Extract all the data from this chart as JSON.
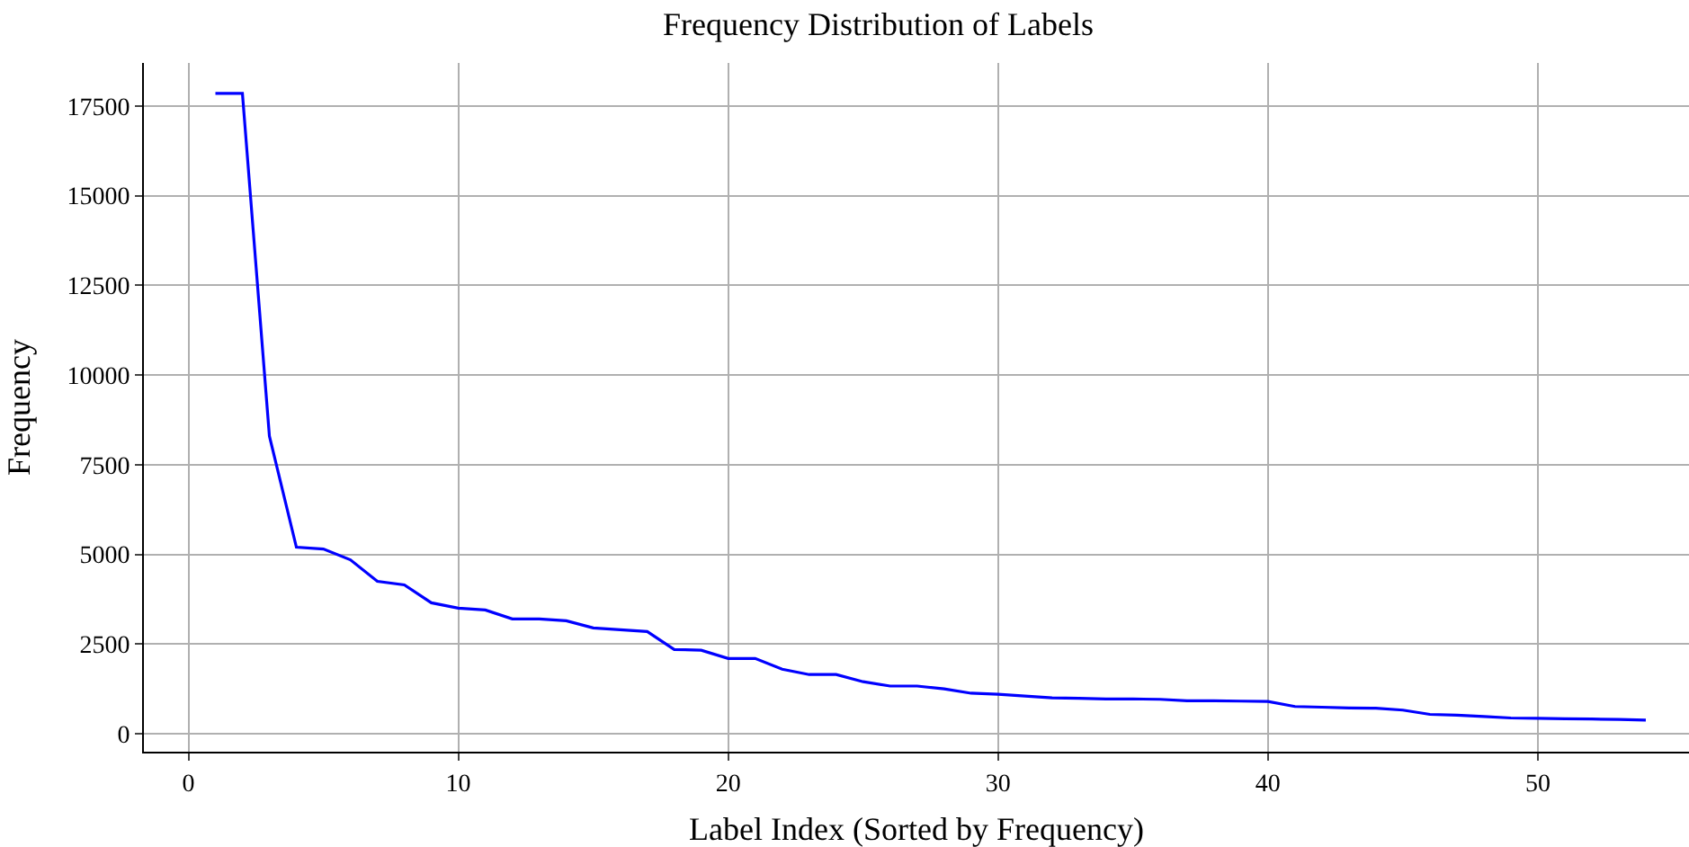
{
  "chart_data": {
    "type": "line",
    "title": "Frequency Distribution of Labels",
    "xlabel": "Label Index (Sorted by Frequency)",
    "ylabel": "Frequency",
    "x": [
      1,
      2,
      3,
      4,
      5,
      6,
      7,
      8,
      9,
      10,
      11,
      12,
      13,
      14,
      15,
      16,
      17,
      18,
      19,
      20,
      21,
      22,
      23,
      24,
      25,
      26,
      27,
      28,
      29,
      30,
      31,
      32,
      33,
      34,
      35,
      36,
      37,
      38,
      39,
      40,
      41,
      42,
      43,
      44,
      45,
      46,
      47,
      48,
      49,
      50,
      51,
      52,
      53,
      54
    ],
    "series": [
      {
        "color": "#0000ff",
        "values": [
          17850,
          17850,
          8300,
          5200,
          5150,
          4850,
          4250,
          4150,
          3650,
          3500,
          3450,
          3200,
          3200,
          3150,
          2950,
          2900,
          2850,
          2350,
          2330,
          2100,
          2100,
          1800,
          1650,
          1650,
          1450,
          1330,
          1330,
          1250,
          1130,
          1100,
          1050,
          1000,
          990,
          970,
          970,
          960,
          920,
          920,
          910,
          900,
          760,
          740,
          720,
          710,
          660,
          540,
          520,
          480,
          440,
          430,
          420,
          410,
          400,
          380
        ]
      }
    ],
    "xlim": [
      -1.65,
      55.6
    ],
    "ylim": [
      -500,
      18700
    ],
    "xticks": [
      0,
      10,
      20,
      30,
      40,
      50
    ],
    "yticks": [
      0,
      2500,
      5000,
      7500,
      10000,
      12500,
      15000,
      17500
    ],
    "grid": true,
    "marker": "none",
    "line_style": "solid"
  }
}
